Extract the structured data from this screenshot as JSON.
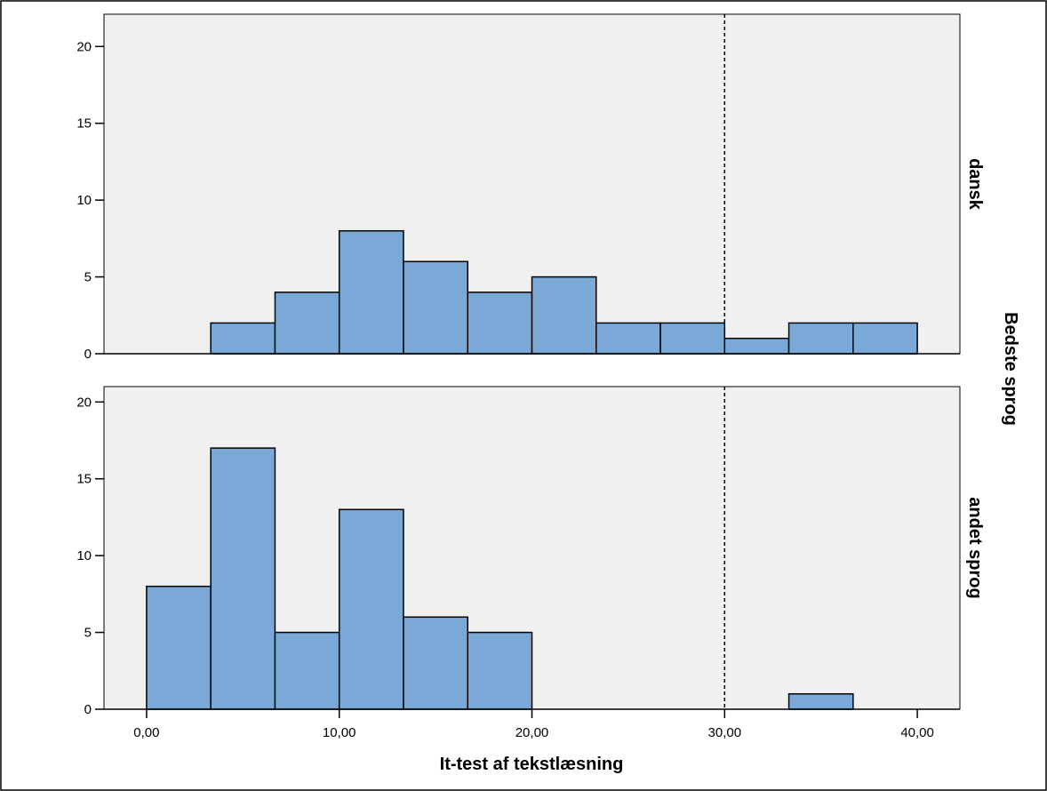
{
  "chart_data": {
    "type": "histogram",
    "xlabel": "It-test af tekstlæsning",
    "facet_label": "Bedste sprog",
    "bins": [
      0,
      3.333,
      6.667,
      10,
      13.333,
      16.667,
      20,
      23.333,
      26.667,
      30,
      33.333,
      36.667,
      40
    ],
    "series": [
      {
        "name": "dansk",
        "color": "#7aa9d8",
        "values": [
          0,
          2,
          4,
          8,
          6,
          4,
          5,
          2,
          2,
          1,
          2,
          2
        ],
        "ylim": [
          0,
          22.1
        ]
      },
      {
        "name": "andet sprog",
        "color": "#7aa9d8",
        "values": [
          8,
          17,
          5,
          13,
          6,
          5,
          0,
          0,
          0,
          0,
          1,
          0
        ],
        "ylim": [
          0,
          21
        ]
      }
    ],
    "xlim": [
      -2.21,
      42.21
    ],
    "xticks": [
      {
        "value": 0,
        "label": "0,00"
      },
      {
        "value": 10,
        "label": "10,00"
      },
      {
        "value": 20,
        "label": "20,00"
      },
      {
        "value": 30,
        "label": "30,00"
      },
      {
        "value": 40,
        "label": "40,00"
      }
    ],
    "yticks": [
      0,
      5,
      10,
      15,
      20
    ],
    "reference_line": 30
  }
}
